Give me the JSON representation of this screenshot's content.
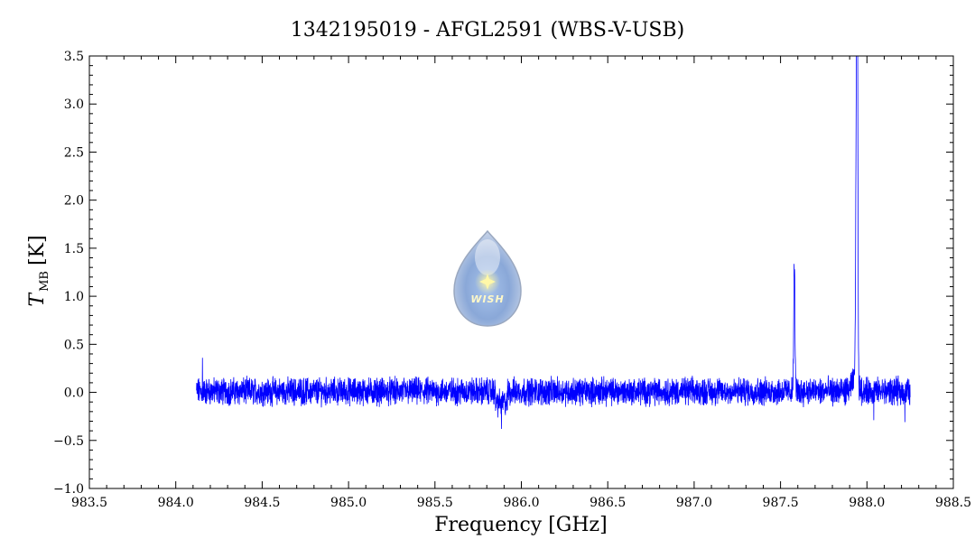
{
  "chart_data": {
    "type": "line",
    "title": "1342195019 - AFGL2591 (WBS-V-USB)",
    "xlabel": "Frequency [GHz]",
    "ylabel_main": "T",
    "ylabel_sub": "MB",
    "ylabel_unit": "[K]",
    "xlim": [
      983.5,
      988.5
    ],
    "ylim": [
      -1.0,
      3.5
    ],
    "x_ticks": [
      "983.5",
      "984.0",
      "984.5",
      "985.0",
      "985.5",
      "986.0",
      "986.5",
      "987.0",
      "987.5",
      "988.0",
      "988.5"
    ],
    "y_ticks": [
      "−1.0",
      "−0.5",
      "0.0",
      "0.5",
      "1.0",
      "1.5",
      "2.0",
      "2.5",
      "3.0",
      "3.5"
    ],
    "x_tick_values": [
      983.5,
      984.0,
      984.5,
      985.0,
      985.5,
      986.0,
      986.5,
      987.0,
      987.5,
      988.0,
      988.5
    ],
    "y_tick_values": [
      -1.0,
      -0.5,
      0.0,
      0.5,
      1.0,
      1.5,
      2.0,
      2.5,
      3.0,
      3.5
    ],
    "grid": false,
    "series": [
      {
        "color": "#0000ff",
        "x": [
          984.12,
          984.16,
          984.3,
          984.5,
          984.75,
          985.0,
          985.25,
          985.5,
          985.7,
          985.8,
          985.88,
          985.95,
          986.1,
          986.3,
          986.5,
          986.8,
          987.0,
          987.2,
          987.4,
          987.55,
          987.58,
          987.6,
          987.75,
          987.9,
          987.93,
          987.94,
          987.95,
          987.97,
          988.0,
          988.1,
          988.2,
          988.25
        ],
        "y": [
          -0.1,
          0.35,
          0.02,
          0.0,
          0.03,
          0.0,
          0.02,
          0.05,
          0.0,
          -0.05,
          -0.3,
          -0.05,
          0.0,
          0.02,
          0.0,
          0.03,
          0.05,
          0.02,
          0.05,
          0.05,
          1.35,
          0.1,
          0.05,
          0.3,
          1.3,
          3.35,
          1.0,
          0.5,
          0.1,
          0.0,
          -0.1,
          0.0
        ]
      }
    ]
  },
  "logo": {
    "text": "WISH",
    "icon": "water-drop-logo"
  }
}
